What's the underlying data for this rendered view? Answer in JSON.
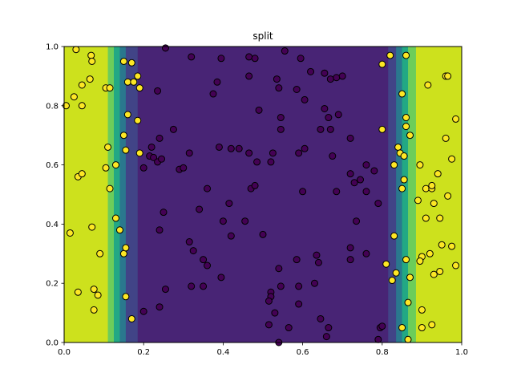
{
  "chart_data": {
    "type": "scatter",
    "title": "split",
    "xlabel": "",
    "ylabel": "",
    "xlim": [
      0.0,
      1.0
    ],
    "ylim": [
      0.0,
      1.0
    ],
    "xticks": [
      "0.0",
      "0.2",
      "0.4",
      "0.6",
      "0.8",
      "1.0"
    ],
    "yticks": [
      "0.0",
      "0.2",
      "0.4",
      "0.6",
      "0.8",
      "1.0"
    ],
    "grid": false,
    "background_regions": [
      {
        "x0": 0.0,
        "x1": 0.11,
        "color": "#cde11d"
      },
      {
        "x0": 0.11,
        "x1": 0.125,
        "color": "#6ccd5a"
      },
      {
        "x0": 0.125,
        "x1": 0.14,
        "color": "#22a884"
      },
      {
        "x0": 0.14,
        "x1": 0.155,
        "color": "#2a788e"
      },
      {
        "x0": 0.155,
        "x1": 0.185,
        "color": "#414487"
      },
      {
        "x0": 0.185,
        "x1": 0.815,
        "color": "#482475"
      },
      {
        "x0": 0.815,
        "x1": 0.835,
        "color": "#414487"
      },
      {
        "x0": 0.835,
        "x1": 0.85,
        "color": "#2a788e"
      },
      {
        "x0": 0.85,
        "x1": 0.865,
        "color": "#22a884"
      },
      {
        "x0": 0.865,
        "x1": 0.885,
        "color": "#6ccd5a"
      },
      {
        "x0": 0.885,
        "x1": 1.0,
        "color": "#cde11d"
      }
    ],
    "class_colors": {
      "0": "#440154",
      "1": "#fde725"
    },
    "points": [
      [
        0.005,
        0.8,
        1
      ],
      [
        0.03,
        0.99,
        1
      ],
      [
        0.068,
        0.97,
        1
      ],
      [
        0.07,
        0.95,
        1
      ],
      [
        0.045,
        0.87,
        1
      ],
      [
        0.065,
        0.89,
        1
      ],
      [
        0.025,
        0.83,
        1
      ],
      [
        0.045,
        0.8,
        1
      ],
      [
        0.105,
        0.86,
        1
      ],
      [
        0.115,
        0.86,
        1
      ],
      [
        0.015,
        0.37,
        1
      ],
      [
        0.035,
        0.56,
        1
      ],
      [
        0.045,
        0.57,
        1
      ],
      [
        0.07,
        0.39,
        1
      ],
      [
        0.09,
        0.3,
        1
      ],
      [
        0.035,
        0.17,
        1
      ],
      [
        0.075,
        0.18,
        1
      ],
      [
        0.085,
        0.16,
        1
      ],
      [
        0.075,
        0.11,
        1
      ],
      [
        0.11,
        0.66,
        1
      ],
      [
        0.105,
        0.59,
        1
      ],
      [
        0.115,
        0.52,
        1
      ],
      [
        0.13,
        0.6,
        1
      ],
      [
        0.13,
        0.42,
        1
      ],
      [
        0.14,
        0.38,
        1
      ],
      [
        0.15,
        0.3,
        1
      ],
      [
        0.155,
        0.32,
        1
      ],
      [
        0.155,
        0.65,
        1
      ],
      [
        0.15,
        0.7,
        1
      ],
      [
        0.16,
        0.77,
        1
      ],
      [
        0.15,
        0.95,
        1
      ],
      [
        0.17,
        0.945,
        1
      ],
      [
        0.16,
        0.88,
        1
      ],
      [
        0.175,
        0.88,
        1
      ],
      [
        0.185,
        0.9,
        1
      ],
      [
        0.19,
        0.86,
        1
      ],
      [
        0.185,
        0.75,
        1
      ],
      [
        0.19,
        0.64,
        1
      ],
      [
        0.155,
        0.155,
        1
      ],
      [
        0.17,
        0.08,
        1
      ],
      [
        0.8,
        0.94,
        1
      ],
      [
        0.82,
        0.97,
        1
      ],
      [
        0.86,
        0.97,
        1
      ],
      [
        0.85,
        0.84,
        1
      ],
      [
        0.86,
        0.76,
        1
      ],
      [
        0.86,
        0.73,
        1
      ],
      [
        0.87,
        0.7,
        1
      ],
      [
        0.8,
        0.72,
        1
      ],
      [
        0.84,
        0.66,
        1
      ],
      [
        0.845,
        0.64,
        1
      ],
      [
        0.855,
        0.63,
        1
      ],
      [
        0.83,
        0.6,
        1
      ],
      [
        0.855,
        0.55,
        1
      ],
      [
        0.85,
        0.52,
        1
      ],
      [
        0.81,
        0.265,
        1
      ],
      [
        0.825,
        0.21,
        1
      ],
      [
        0.83,
        0.36,
        1
      ],
      [
        0.835,
        0.235,
        1
      ],
      [
        0.86,
        0.28,
        1
      ],
      [
        0.87,
        0.22,
        1
      ],
      [
        0.865,
        0.135,
        1
      ],
      [
        0.85,
        0.05,
        1
      ],
      [
        0.865,
        0.01,
        1
      ],
      [
        0.89,
        0.48,
        1
      ],
      [
        0.895,
        0.6,
        1
      ],
      [
        0.91,
        0.52,
        1
      ],
      [
        0.925,
        0.52,
        1
      ],
      [
        0.925,
        0.53,
        1
      ],
      [
        0.93,
        0.47,
        1
      ],
      [
        0.94,
        0.57,
        1
      ],
      [
        0.91,
        0.42,
        1
      ],
      [
        0.945,
        0.42,
        1
      ],
      [
        0.96,
        0.69,
        1
      ],
      [
        0.96,
        0.9,
        1
      ],
      [
        0.965,
        0.9,
        1
      ],
      [
        0.915,
        0.87,
        1
      ],
      [
        0.975,
        0.62,
        1
      ],
      [
        0.965,
        0.495,
        1
      ],
      [
        0.95,
        0.33,
        1
      ],
      [
        0.975,
        0.325,
        1
      ],
      [
        0.9,
        0.29,
        1
      ],
      [
        0.895,
        0.275,
        1
      ],
      [
        0.92,
        0.3,
        1
      ],
      [
        0.93,
        0.23,
        1
      ],
      [
        0.945,
        0.24,
        1
      ],
      [
        0.985,
        0.755,
        1
      ],
      [
        0.985,
        0.26,
        1
      ],
      [
        0.9,
        0.11,
        1
      ],
      [
        0.9,
        0.05,
        1
      ],
      [
        0.925,
        0.06,
        1
      ],
      [
        0.255,
        0.995,
        0
      ],
      [
        0.32,
        0.965,
        0
      ],
      [
        0.395,
        0.96,
        0
      ],
      [
        0.465,
        0.965,
        0
      ],
      [
        0.48,
        0.96,
        0
      ],
      [
        0.555,
        0.985,
        0
      ],
      [
        0.595,
        0.96,
        0
      ],
      [
        0.62,
        0.915,
        0
      ],
      [
        0.655,
        0.91,
        0
      ],
      [
        0.67,
        0.89,
        0
      ],
      [
        0.685,
        0.895,
        0
      ],
      [
        0.7,
        0.9,
        0
      ],
      [
        0.385,
        0.88,
        0
      ],
      [
        0.235,
        0.85,
        0
      ],
      [
        0.375,
        0.84,
        0
      ],
      [
        0.465,
        0.9,
        0
      ],
      [
        0.535,
        0.89,
        0
      ],
      [
        0.54,
        0.86,
        0
      ],
      [
        0.585,
        0.855,
        0
      ],
      [
        0.49,
        0.785,
        0
      ],
      [
        0.545,
        0.76,
        0
      ],
      [
        0.545,
        0.72,
        0
      ],
      [
        0.605,
        0.82,
        0
      ],
      [
        0.655,
        0.79,
        0
      ],
      [
        0.665,
        0.76,
        0
      ],
      [
        0.69,
        0.77,
        0
      ],
      [
        0.645,
        0.72,
        0
      ],
      [
        0.67,
        0.72,
        0
      ],
      [
        0.275,
        0.72,
        0
      ],
      [
        0.24,
        0.69,
        0
      ],
      [
        0.22,
        0.66,
        0
      ],
      [
        0.215,
        0.63,
        0
      ],
      [
        0.225,
        0.625,
        0
      ],
      [
        0.235,
        0.61,
        0
      ],
      [
        0.245,
        0.62,
        0
      ],
      [
        0.2,
        0.59,
        0
      ],
      [
        0.29,
        0.585,
        0
      ],
      [
        0.3,
        0.59,
        0
      ],
      [
        0.315,
        0.64,
        0
      ],
      [
        0.39,
        0.66,
        0
      ],
      [
        0.42,
        0.655,
        0
      ],
      [
        0.44,
        0.655,
        0
      ],
      [
        0.465,
        0.64,
        0
      ],
      [
        0.485,
        0.61,
        0
      ],
      [
        0.52,
        0.61,
        0
      ],
      [
        0.525,
        0.64,
        0
      ],
      [
        0.59,
        0.64,
        0
      ],
      [
        0.605,
        0.655,
        0
      ],
      [
        0.675,
        0.63,
        0
      ],
      [
        0.72,
        0.69,
        0
      ],
      [
        0.76,
        0.6,
        0
      ],
      [
        0.745,
        0.55,
        0
      ],
      [
        0.72,
        0.57,
        0
      ],
      [
        0.73,
        0.54,
        0
      ],
      [
        0.78,
        0.58,
        0
      ],
      [
        0.36,
        0.52,
        0
      ],
      [
        0.47,
        0.52,
        0
      ],
      [
        0.48,
        0.53,
        0
      ],
      [
        0.6,
        0.51,
        0
      ],
      [
        0.685,
        0.51,
        0
      ],
      [
        0.76,
        0.51,
        0
      ],
      [
        0.79,
        0.47,
        0
      ],
      [
        0.25,
        0.44,
        0
      ],
      [
        0.34,
        0.45,
        0
      ],
      [
        0.415,
        0.47,
        0
      ],
      [
        0.4,
        0.41,
        0
      ],
      [
        0.455,
        0.41,
        0
      ],
      [
        0.735,
        0.41,
        0
      ],
      [
        0.24,
        0.38,
        0
      ],
      [
        0.42,
        0.36,
        0
      ],
      [
        0.5,
        0.365,
        0
      ],
      [
        0.315,
        0.34,
        0
      ],
      [
        0.325,
        0.31,
        0
      ],
      [
        0.35,
        0.28,
        0
      ],
      [
        0.36,
        0.26,
        0
      ],
      [
        0.54,
        0.25,
        0
      ],
      [
        0.585,
        0.28,
        0
      ],
      [
        0.635,
        0.295,
        0
      ],
      [
        0.64,
        0.27,
        0
      ],
      [
        0.72,
        0.32,
        0
      ],
      [
        0.72,
        0.28,
        0
      ],
      [
        0.76,
        0.3,
        0
      ],
      [
        0.255,
        0.18,
        0
      ],
      [
        0.32,
        0.19,
        0
      ],
      [
        0.35,
        0.19,
        0
      ],
      [
        0.395,
        0.22,
        0
      ],
      [
        0.545,
        0.19,
        0
      ],
      [
        0.59,
        0.19,
        0
      ],
      [
        0.63,
        0.2,
        0
      ],
      [
        0.52,
        0.17,
        0
      ],
      [
        0.52,
        0.155,
        0
      ],
      [
        0.515,
        0.14,
        0
      ],
      [
        0.59,
        0.13,
        0
      ],
      [
        0.2,
        0.105,
        0
      ],
      [
        0.24,
        0.12,
        0
      ],
      [
        0.53,
        0.1,
        0
      ],
      [
        0.645,
        0.08,
        0
      ],
      [
        0.515,
        0.06,
        0
      ],
      [
        0.565,
        0.05,
        0
      ],
      [
        0.665,
        0.05,
        0
      ],
      [
        0.66,
        0.02,
        0
      ],
      [
        0.54,
        0.0,
        0
      ],
      [
        0.795,
        0.05,
        0
      ],
      [
        0.79,
        0.01,
        0
      ],
      [
        0.8,
        0.055,
        0
      ]
    ]
  }
}
